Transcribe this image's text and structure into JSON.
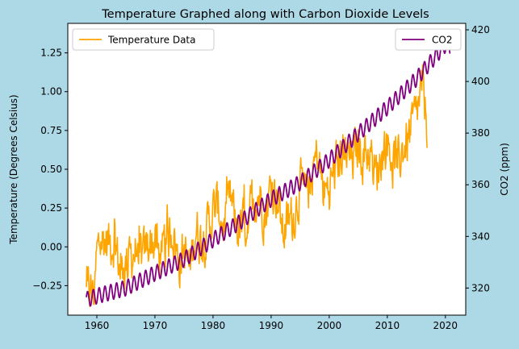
{
  "chart_data": {
    "type": "line",
    "title": "Temperature Graphed along with Carbon Dioxide Levels",
    "background": "#add8e6",
    "plot_background": "#ffffff",
    "x_axis": {
      "ticks": [
        1960,
        1970,
        1980,
        1990,
        2000,
        2010,
        2020
      ],
      "tick_labels": [
        "1960",
        "1970",
        "1980",
        "1990",
        "2000",
        "2010",
        "2020"
      ],
      "range": [
        1955.0,
        2023.5
      ]
    },
    "y_left": {
      "label": "Temperature (Degrees Celsius)",
      "ticks": [
        -0.25,
        0.0,
        0.25,
        0.5,
        0.75,
        1.0,
        1.25
      ],
      "tick_labels": [
        "−0.25",
        "0.00",
        "0.25",
        "0.50",
        "0.75",
        "1.00",
        "1.25"
      ],
      "range": [
        -0.44,
        1.44
      ]
    },
    "y_right": {
      "label": "CO2 (ppm)",
      "ticks": [
        320,
        340,
        360,
        380,
        400,
        420
      ],
      "tick_labels": [
        "320",
        "340",
        "360",
        "380",
        "400",
        "420"
      ],
      "range": [
        309.5,
        422.5
      ]
    },
    "series": [
      {
        "name": "Temperature Data",
        "axis": "left",
        "color": "#ffa500",
        "legend_position": "upper left",
        "x_start": 1958.2,
        "x_step": 0.0833,
        "x": [
          1958.2,
          1959,
          1959.5,
          1960,
          1960.5,
          1961,
          1962,
          1963,
          1964,
          1965,
          1966,
          1967,
          1968,
          1969,
          1970,
          1971,
          1972,
          1973,
          1974,
          1975,
          1976,
          1977,
          1978,
          1979,
          1980,
          1981,
          1982,
          1983,
          1984,
          1985,
          1986,
          1987,
          1988,
          1989,
          1990,
          1991,
          1992,
          1993,
          1994,
          1995,
          1996,
          1997,
          1998,
          1999,
          2000,
          2001,
          2002,
          2003,
          2004,
          2005,
          2006,
          2007,
          2008,
          2009,
          2010,
          2011,
          2012,
          2013,
          2014,
          2015,
          2016,
          2016.5,
          2016.9
        ],
        "y": [
          -0.3,
          -0.28,
          -0.3,
          -0.05,
          0.02,
          0.05,
          0.03,
          0.05,
          -0.15,
          -0.1,
          -0.05,
          0.0,
          -0.08,
          0.05,
          0.02,
          -0.08,
          0.0,
          0.15,
          -0.1,
          -0.02,
          -0.15,
          0.12,
          0.05,
          0.12,
          0.22,
          0.25,
          0.1,
          0.3,
          0.12,
          0.12,
          0.18,
          0.32,
          0.35,
          0.22,
          0.4,
          0.35,
          0.1,
          0.15,
          0.22,
          0.4,
          0.3,
          0.45,
          0.6,
          0.35,
          0.38,
          0.5,
          0.6,
          0.58,
          0.55,
          0.65,
          0.6,
          0.62,
          0.45,
          0.6,
          0.7,
          0.55,
          0.58,
          0.65,
          0.72,
          0.85,
          1.0,
          0.9,
          0.8
        ]
      },
      {
        "name": "CO2",
        "axis": "right",
        "color": "#800080",
        "legend_position": "upper right",
        "x_start": 1958.2,
        "x_end": 2020.8,
        "x": [
          1958.2,
          1960,
          1965,
          1970,
          1975,
          1980,
          1985,
          1990,
          1995,
          2000,
          2005,
          2010,
          2015,
          2020,
          2020.8
        ],
        "y": [
          315.5,
          316.9,
          320.0,
          325.7,
          331.1,
          338.7,
          346.1,
          354.4,
          360.8,
          369.6,
          379.8,
          389.9,
          401.0,
          414.2,
          413.0
        ],
        "seasonal_amplitude_ppm": 3.0
      }
    ]
  }
}
